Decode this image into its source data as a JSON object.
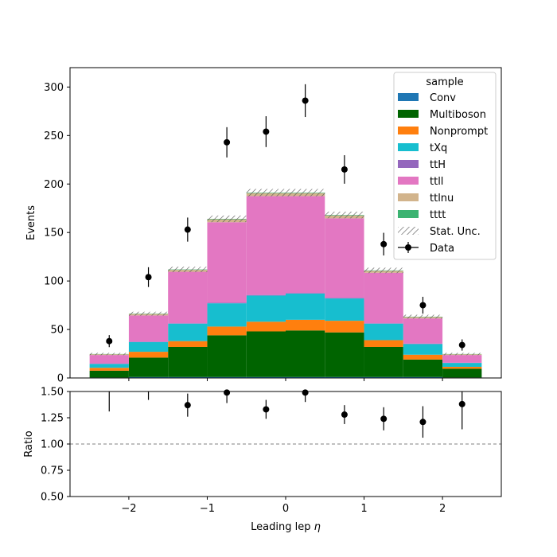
{
  "chart_data": {
    "type": "bar",
    "stacked": true,
    "bin_edges": [
      -2.5,
      -2.0,
      -1.5,
      -1.0,
      -0.5,
      0.0,
      0.5,
      1.0,
      1.5,
      2.0,
      2.5
    ],
    "series": [
      {
        "name": "Conv",
        "color": "#1f77b4",
        "values": [
          0.5,
          1,
          1,
          1,
          1,
          1,
          1,
          1,
          1,
          0.5
        ]
      },
      {
        "name": "Multiboson",
        "color": "#006400",
        "values": [
          7,
          20,
          31,
          43,
          47,
          48,
          46,
          31,
          18,
          9
        ]
      },
      {
        "name": "Nonprompt",
        "color": "#ff7f0e",
        "values": [
          3,
          6,
          6,
          9,
          10,
          11,
          12,
          7,
          5,
          2
        ]
      },
      {
        "name": "tXq",
        "color": "#17becf",
        "values": [
          4,
          10,
          18,
          24,
          27,
          27,
          23,
          17,
          11,
          4
        ]
      },
      {
        "name": "ttH",
        "color": "#9467bd",
        "values": [
          0.2,
          0.5,
          0.5,
          0.6,
          0.6,
          0.6,
          0.6,
          0.5,
          0.4,
          0.2
        ]
      },
      {
        "name": "ttll",
        "color": "#e377c2",
        "values": [
          9,
          27,
          53,
          83,
          102,
          100,
          82,
          52,
          26,
          8
        ]
      },
      {
        "name": "ttlnu",
        "color": "#d2b48c",
        "values": [
          0.8,
          1.5,
          2,
          3,
          3,
          3,
          3,
          2,
          1.5,
          0.8
        ]
      },
      {
        "name": "tttt",
        "color": "#3cb371",
        "values": [
          0.2,
          0.3,
          0.4,
          0.5,
          0.5,
          0.5,
          0.5,
          0.4,
          0.3,
          0.2
        ]
      }
    ],
    "stat_unc": [
      1.2,
      2.0,
      2.8,
      3.4,
      3.8,
      3.8,
      3.4,
      2.8,
      2.0,
      1.2
    ],
    "data": {
      "name": "Data",
      "x": [
        -2.25,
        -1.75,
        -1.25,
        -0.75,
        -0.25,
        0.25,
        0.75,
        1.25,
        1.75,
        2.25
      ],
      "y": [
        38,
        104,
        153,
        243,
        254,
        286,
        215,
        138,
        75,
        34
      ],
      "err": [
        6.2,
        10.2,
        12.4,
        15.6,
        15.9,
        16.9,
        14.7,
        11.7,
        8.7,
        5.8
      ]
    },
    "ratio": {
      "y": [
        1.55,
        1.58,
        1.37,
        1.49,
        1.33,
        1.49,
        1.28,
        1.24,
        1.21,
        1.38
      ],
      "err": [
        0.24,
        0.16,
        0.11,
        0.1,
        0.09,
        0.09,
        0.09,
        0.11,
        0.15,
        0.24
      ],
      "reference": 1.0
    },
    "xlabel": "Leading lep η",
    "xlabel_prefix": "Leading lep ",
    "xlabel_symbol": "η",
    "ylabel": "Events",
    "ratio_ylabel": "Ratio",
    "xlim": [
      -2.75,
      2.75
    ],
    "ylim": [
      0,
      320
    ],
    "ratio_ylim": [
      0.5,
      1.5
    ],
    "x_ticks": [
      "−2",
      "−1",
      "0",
      "1",
      "2"
    ],
    "x_tick_values": [
      -2,
      -1,
      0,
      1,
      2
    ],
    "y_ticks": [
      "0",
      "50",
      "100",
      "150",
      "200",
      "250",
      "300"
    ],
    "y_tick_values": [
      0,
      50,
      100,
      150,
      200,
      250,
      300
    ],
    "ratio_ticks": [
      "0.50",
      "0.75",
      "1.00",
      "1.25",
      "1.50"
    ],
    "ratio_tick_values": [
      0.5,
      0.75,
      1.0,
      1.25,
      1.5
    ],
    "legend": {
      "title": "sample",
      "placement": "top-right",
      "stat_unc_label": "Stat. Unc.",
      "data_label": "Data"
    },
    "grid": false
  }
}
